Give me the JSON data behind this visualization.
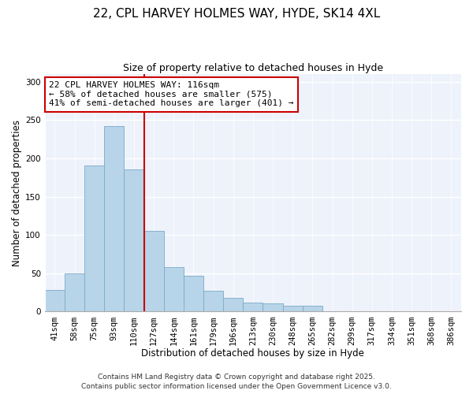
{
  "title": "22, CPL HARVEY HOLMES WAY, HYDE, SK14 4XL",
  "subtitle": "Size of property relative to detached houses in Hyde",
  "xlabel": "Distribution of detached houses by size in Hyde",
  "ylabel": "Number of detached properties",
  "categories": [
    "41sqm",
    "58sqm",
    "75sqm",
    "93sqm",
    "110sqm",
    "127sqm",
    "144sqm",
    "161sqm",
    "179sqm",
    "196sqm",
    "213sqm",
    "230sqm",
    "248sqm",
    "265sqm",
    "282sqm",
    "299sqm",
    "317sqm",
    "334sqm",
    "351sqm",
    "368sqm",
    "386sqm"
  ],
  "values": [
    28,
    50,
    191,
    242,
    186,
    105,
    58,
    47,
    27,
    18,
    12,
    11,
    8,
    8,
    0,
    0,
    0,
    1,
    0,
    0,
    1
  ],
  "bar_color": "#b8d4e8",
  "bar_edge_color": "#7aaac8",
  "vline_color": "#cc0000",
  "annotation_title": "22 CPL HARVEY HOLMES WAY: 116sqm",
  "annotation_line1": "← 58% of detached houses are smaller (575)",
  "annotation_line2": "41% of semi-detached houses are larger (401) →",
  "annotation_box_color": "#ffffff",
  "annotation_box_edge_color": "#cc0000",
  "ylim": [
    0,
    310
  ],
  "bg_color": "#eef2fb",
  "footer1": "Contains HM Land Registry data © Crown copyright and database right 2025.",
  "footer2": "Contains public sector information licensed under the Open Government Licence v3.0.",
  "title_fontsize": 11,
  "subtitle_fontsize": 9,
  "axis_label_fontsize": 8.5,
  "tick_fontsize": 7.5,
  "annotation_fontsize": 8,
  "footer_fontsize": 6.5
}
